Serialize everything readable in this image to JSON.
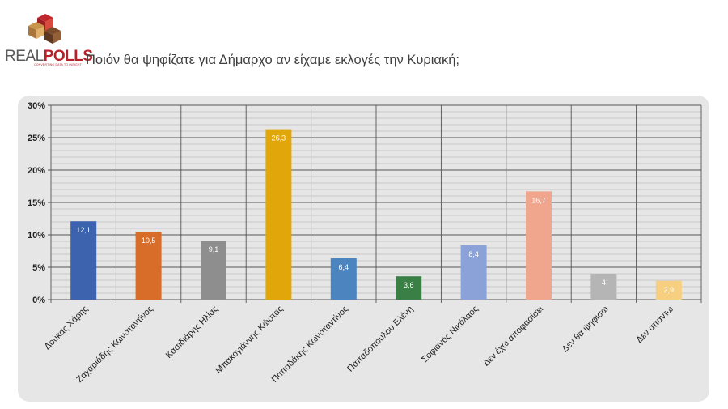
{
  "header": {
    "logo_word_a": "REAL",
    "logo_word_b": "POLLS",
    "logo_tagline": "CONVERTING DATA TO INSIGHT",
    "question": "Ποιόν θα ψηφίζατε για Δήμαρχο αν είχαμε εκλογές την Κυριακή;"
  },
  "colors": {
    "panel": "#e6e6e6",
    "gridline": "#9a9a9a",
    "axis": "#333333"
  },
  "chart_data": {
    "type": "bar",
    "categories": [
      "Δούκας Χάρης",
      "Ζαχαριάδης Κωνσταντίνος",
      "Κασιδιάρης Ηλίας",
      "Μπακογιάννης Κώστας",
      "Παπαδάκης Κωνσταντίνος",
      "Παπαδοπούλου Ελένη",
      "Σοφιανός Νικόλαος",
      "Δεν έχω αποφασίσει",
      "Δεν θα ψηφίσω",
      "Δεν απαντώ"
    ],
    "values": [
      12.1,
      10.5,
      9.1,
      26.3,
      6.4,
      3.6,
      8.4,
      16.7,
      4,
      2.9
    ],
    "value_labels": [
      "12,1",
      "10,5",
      "9,1",
      "26,3",
      "6,4",
      "3,6",
      "8,4",
      "16,7",
      "4",
      "2,9"
    ],
    "bar_colors": [
      "#3d63ae",
      "#d86d2a",
      "#8e8e8e",
      "#e1a70a",
      "#4b84bf",
      "#3a7f45",
      "#8aa2d8",
      "#f0a68d",
      "#b5b5b5",
      "#f7cf80"
    ],
    "value_label_color": "#ffffff",
    "ylim": [
      0,
      30
    ],
    "yticks": [
      0,
      5,
      10,
      15,
      20,
      25,
      30
    ],
    "ytick_labels": [
      "0%",
      "5%",
      "10%",
      "15%",
      "20%",
      "25%",
      "30%"
    ],
    "minor_grid_step": 1,
    "grid": true,
    "legend": "none",
    "title": "",
    "xlabel": "",
    "ylabel": ""
  }
}
